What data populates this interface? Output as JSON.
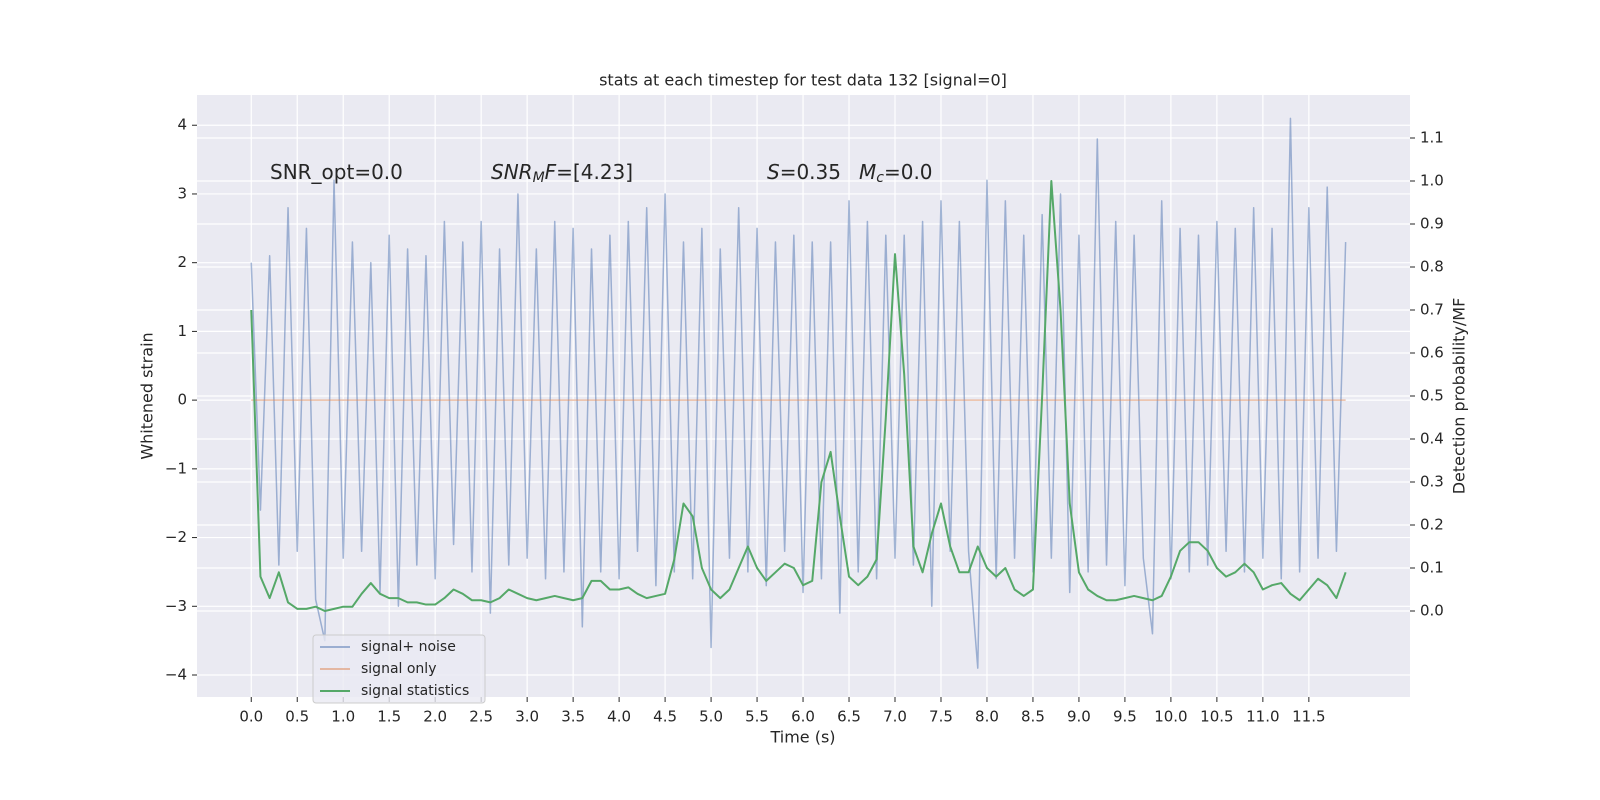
{
  "chart_data": {
    "type": "line",
    "title": "stats at each timestep for test data 132 [signal=0]",
    "xlabel": "Time (s)",
    "ylabel": "Whitened strain",
    "y2label": "Detection probability/MF",
    "annotations": [
      [
        {
          "text": "SNR_opt=0.0"
        }
      ],
      [
        {
          "text": "SNR",
          "italic": true
        },
        {
          "text": "M",
          "italic": true,
          "sub": true
        },
        {
          "text": "F",
          "italic": true
        },
        {
          "text": "=[4.23]"
        }
      ],
      [
        {
          "text": "S",
          "italic": true
        },
        {
          "text": "=0.35"
        }
      ],
      [
        {
          "text": "M",
          "italic": true
        },
        {
          "text": "c",
          "italic": true,
          "sub": true
        },
        {
          "text": "=0.0"
        }
      ]
    ],
    "x": [
      0,
      0.1,
      0.2,
      0.3,
      0.4,
      0.5,
      0.6,
      0.7,
      0.8,
      0.9,
      1,
      1.1,
      1.2,
      1.3,
      1.4,
      1.5,
      1.6,
      1.7,
      1.8,
      1.9,
      2,
      2.1,
      2.2,
      2.3,
      2.4,
      2.5,
      2.6,
      2.7,
      2.8,
      2.9,
      3,
      3.1,
      3.2,
      3.3,
      3.4,
      3.5,
      3.6,
      3.7,
      3.8,
      3.9,
      4,
      4.1,
      4.2,
      4.3,
      4.4,
      4.5,
      4.6,
      4.7,
      4.8,
      4.9,
      5,
      5.1,
      5.2,
      5.3,
      5.4,
      5.5,
      5.6,
      5.7,
      5.8,
      5.9,
      6,
      6.1,
      6.2,
      6.3,
      6.4,
      6.5,
      6.6,
      6.7,
      6.8,
      6.9,
      7,
      7.1,
      7.2,
      7.3,
      7.4,
      7.5,
      7.6,
      7.7,
      7.8,
      7.9,
      8,
      8.1,
      8.2,
      8.3,
      8.4,
      8.5,
      8.6,
      8.7,
      8.8,
      8.9,
      9,
      9.1,
      9.2,
      9.3,
      9.4,
      9.5,
      9.6,
      9.7,
      9.8,
      9.9,
      10,
      10.1,
      10.2,
      10.3,
      10.4,
      10.5,
      10.6,
      10.7,
      10.8,
      10.9,
      11,
      11.1,
      11.2,
      11.3,
      11.4,
      11.5,
      11.6,
      11.7,
      11.8,
      11.9
    ],
    "series": [
      {
        "name": "signal+ noise",
        "color": "#4c72b0",
        "opacity": 0.5,
        "values": [
          2.0,
          -1.6,
          2.1,
          -2.4,
          2.8,
          -2.2,
          2.5,
          -2.9,
          -3.5,
          3.2,
          -2.3,
          2.3,
          -2.2,
          2.0,
          -2.8,
          2.4,
          -3.0,
          2.2,
          -2.4,
          2.1,
          -2.6,
          2.6,
          -2.1,
          2.3,
          -2.5,
          2.6,
          -3.1,
          2.2,
          -2.4,
          3.0,
          -2.3,
          2.2,
          -2.6,
          2.6,
          -2.5,
          2.5,
          -3.3,
          2.2,
          -2.5,
          2.4,
          -2.6,
          2.6,
          -2.2,
          2.8,
          -2.7,
          3.0,
          -2.5,
          2.3,
          -2.6,
          2.5,
          -3.6,
          2.2,
          -2.3,
          2.8,
          -2.5,
          2.5,
          -2.7,
          2.3,
          -2.2,
          2.4,
          -2.8,
          2.3,
          -2.6,
          2.3,
          -3.1,
          2.9,
          -2.5,
          2.6,
          -2.6,
          2.4,
          -2.3,
          2.4,
          -2.4,
          2.6,
          -3.0,
          2.9,
          -2.2,
          2.6,
          -2.2,
          -3.9,
          3.2,
          -2.6,
          2.9,
          -2.3,
          2.4,
          -2.5,
          2.7,
          -2.3,
          3.0,
          -2.8,
          2.4,
          -2.5,
          3.8,
          -2.4,
          2.6,
          -2.7,
          2.4,
          -2.3,
          -3.4,
          2.9,
          -2.6,
          2.5,
          -2.5,
          2.4,
          -2.4,
          2.6,
          -2.2,
          2.5,
          -2.5,
          2.8,
          -2.3,
          2.5,
          -2.6,
          4.1,
          -2.5,
          2.8,
          -2.3,
          3.1,
          -2.2,
          2.3
        ]
      },
      {
        "name": "signal only",
        "color": "#dd8452",
        "opacity": 0.5,
        "values": [
          0,
          0,
          0,
          0,
          0,
          0,
          0,
          0,
          0,
          0,
          0,
          0,
          0,
          0,
          0,
          0,
          0,
          0,
          0,
          0,
          0,
          0,
          0,
          0,
          0,
          0,
          0,
          0,
          0,
          0,
          0,
          0,
          0,
          0,
          0,
          0,
          0,
          0,
          0,
          0,
          0,
          0,
          0,
          0,
          0,
          0,
          0,
          0,
          0,
          0,
          0,
          0,
          0,
          0,
          0,
          0,
          0,
          0,
          0,
          0,
          0,
          0,
          0,
          0,
          0,
          0,
          0,
          0,
          0,
          0,
          0,
          0,
          0,
          0,
          0,
          0,
          0,
          0,
          0,
          0,
          0,
          0,
          0,
          0,
          0,
          0,
          0,
          0,
          0,
          0,
          0,
          0,
          0,
          0,
          0,
          0,
          0,
          0,
          0,
          0,
          0,
          0,
          0,
          0,
          0,
          0,
          0,
          0,
          0,
          0,
          0,
          0,
          0,
          0,
          0,
          0,
          0,
          0,
          0,
          0
        ]
      },
      {
        "name": "signal statistics",
        "color": "#55a868",
        "opacity": 1,
        "axis": "y2",
        "values": [
          0.7,
          0.08,
          0.03,
          0.09,
          0.02,
          0.005,
          0.005,
          0.01,
          0.0,
          0.005,
          0.01,
          0.01,
          0.04,
          0.065,
          0.04,
          0.03,
          0.03,
          0.02,
          0.02,
          0.015,
          0.015,
          0.03,
          0.05,
          0.04,
          0.025,
          0.025,
          0.02,
          0.03,
          0.05,
          0.04,
          0.03,
          0.025,
          0.03,
          0.035,
          0.03,
          0.025,
          0.03,
          0.07,
          0.07,
          0.05,
          0.05,
          0.055,
          0.04,
          0.03,
          0.035,
          0.04,
          0.12,
          0.25,
          0.22,
          0.1,
          0.05,
          0.03,
          0.05,
          0.1,
          0.15,
          0.1,
          0.07,
          0.09,
          0.11,
          0.1,
          0.06,
          0.07,
          0.3,
          0.37,
          0.22,
          0.08,
          0.06,
          0.08,
          0.12,
          0.45,
          0.83,
          0.55,
          0.15,
          0.09,
          0.18,
          0.25,
          0.15,
          0.09,
          0.09,
          0.15,
          0.1,
          0.08,
          0.1,
          0.05,
          0.035,
          0.05,
          0.5,
          1.0,
          0.7,
          0.25,
          0.09,
          0.05,
          0.035,
          0.025,
          0.025,
          0.03,
          0.035,
          0.03,
          0.025,
          0.035,
          0.08,
          0.14,
          0.16,
          0.16,
          0.14,
          0.1,
          0.08,
          0.09,
          0.11,
          0.09,
          0.05,
          0.06,
          0.065,
          0.04,
          0.025,
          0.05,
          0.075,
          0.06,
          0.03,
          0.09
        ]
      }
    ],
    "xlim": [
      -0.59,
      12.6
    ],
    "ylim": [
      -4.32,
      4.44
    ],
    "y2lim": [
      -0.2,
      1.2
    ],
    "xticks": [
      {
        "value": 0,
        "label": "0.0"
      },
      0.5,
      {
        "value": 1,
        "label": "1.0"
      },
      1.5,
      {
        "value": 2,
        "label": "2.0"
      },
      2.5,
      {
        "value": 3,
        "label": "3.0"
      },
      3.5,
      {
        "value": 4,
        "label": "4.0"
      },
      4.5,
      {
        "value": 5,
        "label": "5.0"
      },
      5.5,
      {
        "value": 6,
        "label": "6.0"
      },
      6.5,
      {
        "value": 7,
        "label": "7.0"
      },
      7.5,
      {
        "value": 8,
        "label": "8.0"
      },
      8.5,
      {
        "value": 9,
        "label": "9.0"
      },
      9.5,
      {
        "value": 10,
        "label": "10.0"
      },
      10.5,
      {
        "value": 11,
        "label": "11.0"
      },
      11.5
    ],
    "yticks": [
      {
        "value": -4,
        "label": "−4"
      },
      {
        "value": -3,
        "label": "−3"
      },
      {
        "value": -2,
        "label": "−2"
      },
      {
        "value": -1,
        "label": "−1"
      },
      0,
      1,
      2,
      3,
      4
    ],
    "y2ticks": [
      {
        "value": 0,
        "label": "0.0"
      },
      0.1,
      0.2,
      0.3,
      0.4,
      0.5,
      0.6,
      0.7,
      0.8,
      0.9,
      {
        "value": 1,
        "label": "1.0"
      },
      1.1
    ],
    "grid": true,
    "legend": "lower left"
  }
}
